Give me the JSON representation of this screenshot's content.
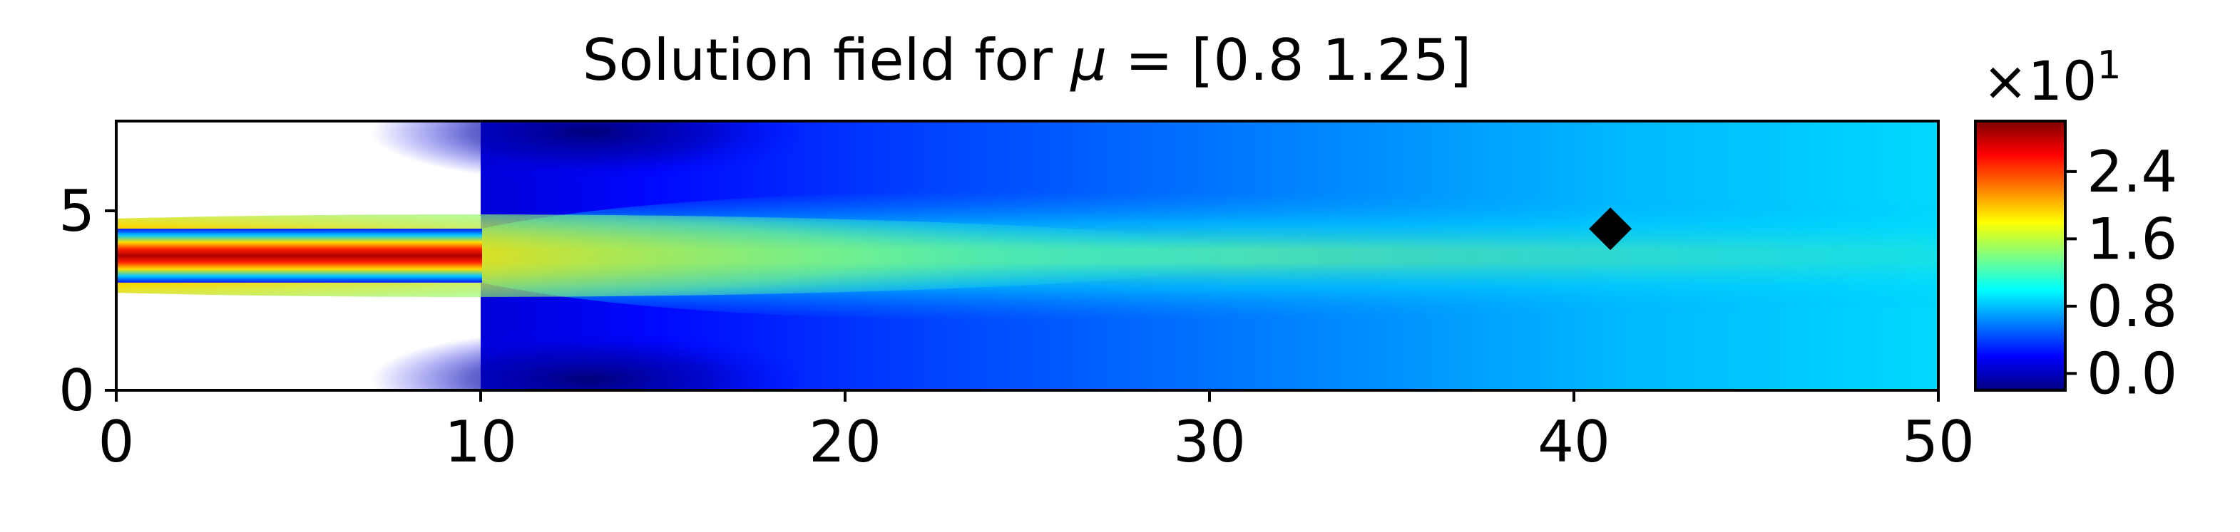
{
  "chart_data": {
    "type": "heatmap",
    "title_prefix": "Solution field for ",
    "title_symbol": "μ",
    "title_suffix": " = [0.8  1.25]",
    "xlabel": "",
    "ylabel": "",
    "xlim": [
      0,
      50
    ],
    "ylim": [
      0,
      7.5
    ],
    "x_ticks": [
      0,
      10,
      20,
      30,
      40,
      50
    ],
    "y_ticks": [
      0,
      5
    ],
    "grid": false,
    "colormap": "jet",
    "colorbar": {
      "multiplier_base": "×10",
      "multiplier_exponent": "1",
      "ticks": [
        "2.4",
        "1.6",
        "0.8",
        "0.0"
      ],
      "tick_values": [
        2.4,
        1.6,
        0.8,
        0.0
      ],
      "range": [
        -0.2,
        3.0
      ]
    },
    "geometry": {
      "inlet_channel_x": [
        0,
        10
      ],
      "inlet_channel_y": [
        3.0,
        4.5
      ],
      "expansion_x": [
        10,
        50
      ],
      "expansion_y": [
        0,
        7.5
      ]
    },
    "marker": {
      "shape": "diamond",
      "x": 41,
      "y": 4.5,
      "color": "#000000"
    },
    "colors": {
      "jet": [
        "#00007f",
        "#0000ff",
        "#007fff",
        "#00ffff",
        "#7fff7f",
        "#ffff00",
        "#ff7f00",
        "#ff0000",
        "#7f0000"
      ]
    }
  }
}
